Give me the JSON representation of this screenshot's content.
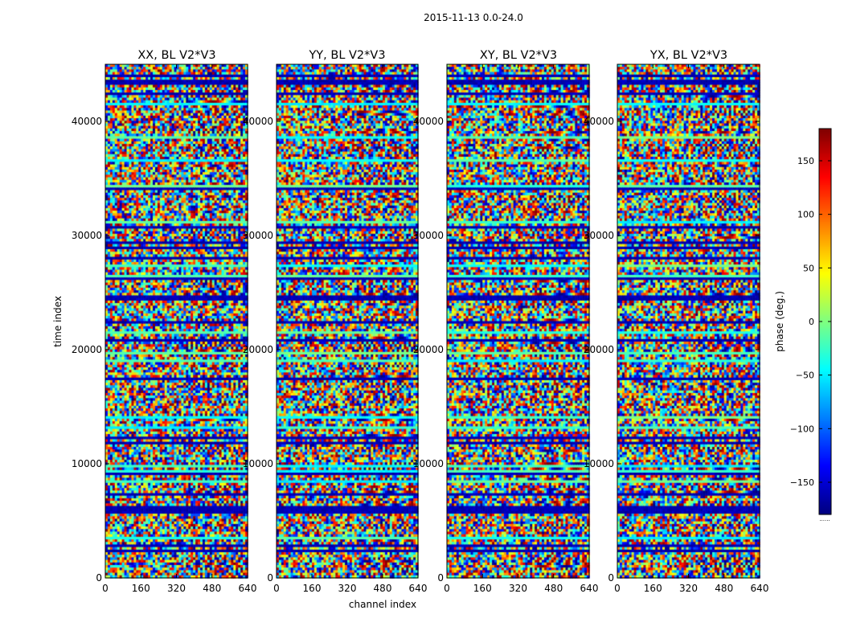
{
  "chart_data": {
    "type": "heatmap",
    "suptitle": "2015-11-13 0.0-24.0",
    "xlabel": "channel index",
    "ylabel": "time index",
    "xlim": [
      0,
      640
    ],
    "ylim": [
      0,
      45000
    ],
    "xticks": [
      "0",
      "160",
      "320",
      "480",
      "640"
    ],
    "yticks": [
      "0",
      "10000",
      "20000",
      "30000",
      "40000"
    ],
    "xtick_values": [
      0,
      160,
      320,
      480,
      640
    ],
    "ytick_values": [
      0,
      10000,
      20000,
      30000,
      40000
    ],
    "panels": [
      {
        "title": "XX, BL V2*V3",
        "seed": 11
      },
      {
        "title": "YY, BL V2*V3",
        "seed": 23
      },
      {
        "title": "XY, BL V2*V3",
        "seed": 37
      },
      {
        "title": "YX, BL V2*V3",
        "seed": 53
      }
    ],
    "colorbar": {
      "label": "phase (deg.)",
      "colormap": "jet",
      "range": [
        -180,
        180
      ],
      "ticks": [
        "150",
        "100",
        "50",
        "0",
        "−50",
        "−100",
        "−150"
      ],
      "tick_values": [
        150,
        100,
        50,
        0,
        -50,
        -100,
        -150
      ],
      "footnote": "......"
    }
  }
}
